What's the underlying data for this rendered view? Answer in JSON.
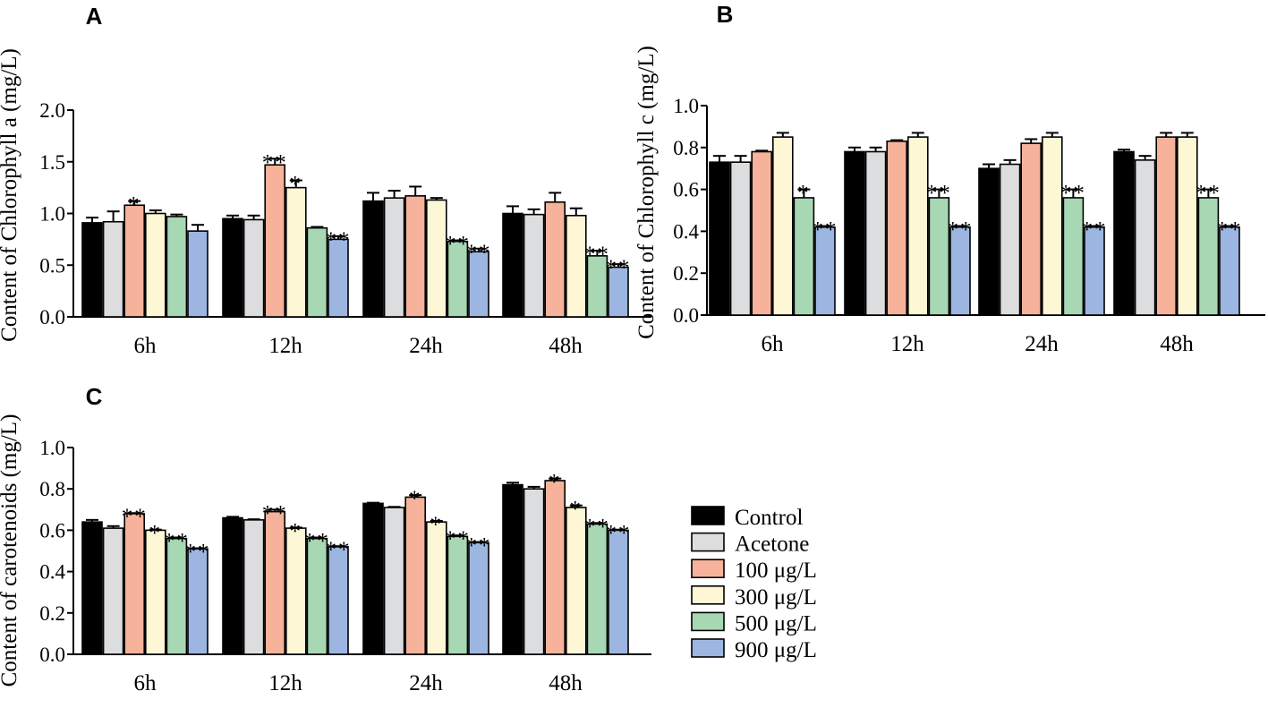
{
  "series_colors": [
    "#000000",
    "#dcdddf",
    "#f6b29a",
    "#fdf7d6",
    "#a7d8b3",
    "#9db6e1"
  ],
  "legend": {
    "entries": [
      "Control",
      "Acetone",
      "100 μg/L",
      "300 μg/L",
      "500 μg/L",
      "900 μg/L"
    ]
  },
  "chart_data": [
    {
      "panel": "A",
      "type": "bar",
      "ylabel": "Content of  Chlorophyll a (mg/L)",
      "ylim": [
        0,
        2.0
      ],
      "yticks": [
        0.0,
        0.5,
        1.0,
        1.5,
        2.0
      ],
      "ytick_labels": [
        "0.0",
        "0.5",
        "1.0",
        "1.5",
        "2.0"
      ],
      "categories": [
        "6h",
        "12h",
        "24h",
        "48h"
      ],
      "series": [
        {
          "name": "Control",
          "values": [
            0.91,
            0.95,
            1.12,
            1.0
          ],
          "errors": [
            0.05,
            0.03,
            0.08,
            0.07
          ],
          "marks": [
            "",
            "",
            "",
            ""
          ]
        },
        {
          "name": "Acetone",
          "values": [
            0.92,
            0.94,
            1.15,
            0.99
          ],
          "errors": [
            0.1,
            0.04,
            0.07,
            0.05
          ],
          "marks": [
            "",
            "",
            "",
            ""
          ]
        },
        {
          "name": "100 μg/L",
          "values": [
            1.08,
            1.47,
            1.17,
            1.11
          ],
          "errors": [
            0.04,
            0.06,
            0.09,
            0.09
          ],
          "marks": [
            "*",
            "**",
            "",
            ""
          ]
        },
        {
          "name": "300 μg/L",
          "values": [
            1.0,
            1.25,
            1.13,
            0.98
          ],
          "errors": [
            0.03,
            0.07,
            0.02,
            0.07
          ],
          "marks": [
            "",
            "*",
            "",
            ""
          ]
        },
        {
          "name": "500 μg/L",
          "values": [
            0.97,
            0.86,
            0.73,
            0.59
          ],
          "errors": [
            0.02,
            0.01,
            0.01,
            0.05
          ],
          "marks": [
            "",
            "",
            "**",
            "**"
          ]
        },
        {
          "name": "900 μg/L",
          "values": [
            0.83,
            0.75,
            0.63,
            0.48
          ],
          "errors": [
            0.06,
            0.03,
            0.03,
            0.03
          ],
          "marks": [
            "",
            "**",
            "**",
            "**"
          ]
        }
      ]
    },
    {
      "panel": "B",
      "type": "bar",
      "ylabel": "Content of  Chlorophyll c (mg/L)",
      "ylim": [
        0,
        1.0
      ],
      "yticks": [
        0.0,
        0.2,
        0.4,
        0.6,
        0.8,
        1.0
      ],
      "ytick_labels": [
        "0.0",
        "0.2",
        "0.4",
        "0.6",
        "0.8",
        "1.0"
      ],
      "categories": [
        "6h",
        "12h",
        "24h",
        "48h"
      ],
      "series": [
        {
          "name": "Control",
          "values": [
            0.73,
            0.78,
            0.7,
            0.78
          ],
          "errors": [
            0.03,
            0.02,
            0.02,
            0.01
          ],
          "marks": [
            "",
            "",
            "",
            ""
          ]
        },
        {
          "name": "Acetone",
          "values": [
            0.73,
            0.78,
            0.72,
            0.74
          ],
          "errors": [
            0.03,
            0.02,
            0.02,
            0.02
          ],
          "marks": [
            "",
            "",
            "",
            ""
          ]
        },
        {
          "name": "100 μg/L",
          "values": [
            0.78,
            0.83,
            0.82,
            0.85
          ],
          "errors": [
            0.005,
            0.005,
            0.02,
            0.02
          ],
          "marks": [
            "",
            "",
            "",
            ""
          ]
        },
        {
          "name": "300 μg/L",
          "values": [
            0.85,
            0.85,
            0.85,
            0.85
          ],
          "errors": [
            0.02,
            0.02,
            0.02,
            0.02
          ],
          "marks": [
            "",
            "",
            "",
            ""
          ]
        },
        {
          "name": "500 μg/L",
          "values": [
            0.56,
            0.56,
            0.56,
            0.56
          ],
          "errors": [
            0.04,
            0.04,
            0.04,
            0.04
          ],
          "marks": [
            "*",
            "**",
            "**",
            "**"
          ]
        },
        {
          "name": "900 μg/L",
          "values": [
            0.42,
            0.42,
            0.42,
            0.42
          ],
          "errors": [
            0.005,
            0.005,
            0.005,
            0.005
          ],
          "marks": [
            "**",
            "**",
            "**",
            "**"
          ]
        }
      ]
    },
    {
      "panel": "C",
      "type": "bar",
      "ylabel": "Content of  carotenoids (mg/L)",
      "ylim": [
        0,
        1.0
      ],
      "yticks": [
        0.0,
        0.2,
        0.4,
        0.6,
        0.8,
        1.0
      ],
      "ytick_labels": [
        "0.0",
        "0.2",
        "0.4",
        "0.6",
        "0.8",
        "1.0"
      ],
      "categories": [
        "6h",
        "12h",
        "24h",
        "48h"
      ],
      "series": [
        {
          "name": "Control",
          "values": [
            0.64,
            0.66,
            0.73,
            0.82
          ],
          "errors": [
            0.01,
            0.005,
            0.003,
            0.01
          ],
          "marks": [
            "",
            "",
            "",
            ""
          ]
        },
        {
          "name": "Acetone",
          "values": [
            0.61,
            0.65,
            0.71,
            0.8
          ],
          "errors": [
            0.01,
            0.003,
            0.003,
            0.01
          ],
          "marks": [
            "",
            "",
            "",
            ""
          ]
        },
        {
          "name": "100 μg/L",
          "values": [
            0.68,
            0.69,
            0.76,
            0.84
          ],
          "errors": [
            0.003,
            0.01,
            0.01,
            0.01
          ],
          "marks": [
            "**",
            "**",
            "*",
            "*"
          ]
        },
        {
          "name": "300 μg/L",
          "values": [
            0.6,
            0.61,
            0.64,
            0.71
          ],
          "errors": [
            0.003,
            0.003,
            0.005,
            0.01
          ],
          "marks": [
            "*",
            "*",
            "*",
            "*"
          ]
        },
        {
          "name": "500 μg/L",
          "values": [
            0.56,
            0.56,
            0.57,
            0.63
          ],
          "errors": [
            0.005,
            0.005,
            0.005,
            0.005
          ],
          "marks": [
            "**",
            "**",
            "**",
            "**"
          ]
        },
        {
          "name": "900 μg/L",
          "values": [
            0.51,
            0.52,
            0.54,
            0.6
          ],
          "errors": [
            0.003,
            0.003,
            0.003,
            0.003
          ],
          "marks": [
            "**",
            "**",
            "**",
            "**"
          ]
        }
      ]
    }
  ]
}
